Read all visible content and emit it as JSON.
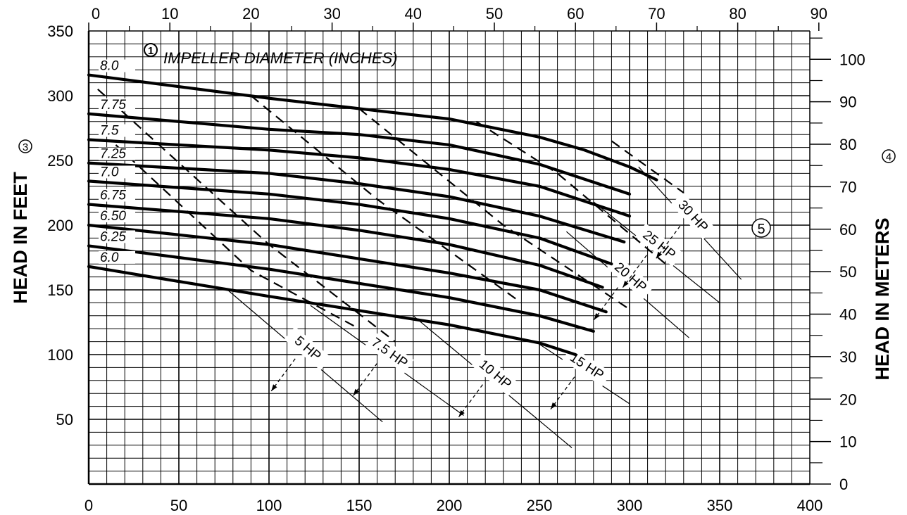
{
  "chart_data": {
    "type": "line",
    "title": "IMPELLER DIAMETER (INCHES)",
    "title_marker": "1",
    "ylabel_left": "HEAD IN FEET",
    "ylabel_left_marker": "3",
    "ylabel_right": "HEAD IN METERS",
    "ylabel_right_marker": "4",
    "hp_marker": "5",
    "x_bottom_ticks": [
      "0",
      "50",
      "100",
      "150",
      "200",
      "250",
      "300",
      "350",
      "400"
    ],
    "x_top_ticks": [
      "0",
      "10",
      "20",
      "30",
      "40",
      "50",
      "60",
      "70",
      "80",
      "90"
    ],
    "y_left_ticks": [
      "50",
      "100",
      "150",
      "200",
      "250",
      "300",
      "350"
    ],
    "y_right_ticks": [
      "0",
      "10",
      "20",
      "30",
      "40",
      "50",
      "60",
      "70",
      "80",
      "90",
      "100"
    ],
    "xlim": [
      0,
      400
    ],
    "ylim": [
      0,
      350
    ],
    "grid": true,
    "series": [
      {
        "name": "8.0",
        "points": [
          [
            0,
            316
          ],
          [
            100,
            298
          ],
          [
            150,
            290
          ],
          [
            200,
            282
          ],
          [
            250,
            268
          ],
          [
            275,
            258
          ],
          [
            300,
            245
          ],
          [
            315,
            235
          ]
        ]
      },
      {
        "name": "7.75",
        "points": [
          [
            0,
            286
          ],
          [
            100,
            274
          ],
          [
            150,
            270
          ],
          [
            200,
            262
          ],
          [
            250,
            247
          ],
          [
            300,
            224
          ]
        ]
      },
      {
        "name": "7.5",
        "points": [
          [
            0,
            266
          ],
          [
            100,
            258
          ],
          [
            150,
            252
          ],
          [
            200,
            243
          ],
          [
            250,
            230
          ],
          [
            300,
            207
          ]
        ]
      },
      {
        "name": "7.25",
        "points": [
          [
            0,
            248
          ],
          [
            100,
            240
          ],
          [
            150,
            232
          ],
          [
            200,
            222
          ],
          [
            250,
            207
          ],
          [
            297,
            187
          ]
        ]
      },
      {
        "name": "7.0",
        "points": [
          [
            0,
            234
          ],
          [
            100,
            224
          ],
          [
            150,
            216
          ],
          [
            200,
            205
          ],
          [
            250,
            190
          ],
          [
            290,
            170
          ]
        ]
      },
      {
        "name": "6.75",
        "points": [
          [
            0,
            216
          ],
          [
            100,
            205
          ],
          [
            150,
            196
          ],
          [
            200,
            185
          ],
          [
            250,
            169
          ],
          [
            285,
            152
          ]
        ]
      },
      {
        "name": "6.50",
        "points": [
          [
            0,
            200
          ],
          [
            100,
            185
          ],
          [
            150,
            174
          ],
          [
            200,
            163
          ],
          [
            250,
            150
          ],
          [
            287,
            133
          ]
        ]
      },
      {
        "name": "6.25",
        "points": [
          [
            0,
            184
          ],
          [
            100,
            166
          ],
          [
            150,
            155
          ],
          [
            200,
            144
          ],
          [
            250,
            130
          ],
          [
            280,
            118
          ]
        ]
      },
      {
        "name": "6.0",
        "points": [
          [
            0,
            168
          ],
          [
            100,
            145
          ],
          [
            150,
            134
          ],
          [
            200,
            123
          ],
          [
            250,
            109
          ],
          [
            270,
            100
          ]
        ]
      }
    ],
    "hp_lines": [
      {
        "name": "5 HP",
        "points": [
          [
            77,
            150
          ],
          [
            163,
            48
          ]
        ]
      },
      {
        "name": "7.5 HP",
        "points": [
          [
            123,
            138
          ],
          [
            208,
            53
          ]
        ]
      },
      {
        "name": "10 HP",
        "points": [
          [
            180,
            130
          ],
          [
            268,
            28
          ]
        ]
      },
      {
        "name": "15 HP",
        "points": [
          [
            250,
            108
          ],
          [
            300,
            62
          ]
        ]
      },
      {
        "name": "20 HP",
        "points": [
          [
            265,
            195
          ],
          [
            333,
            113
          ]
        ]
      },
      {
        "name": "25 HP",
        "points": [
          [
            280,
            218
          ],
          [
            350,
            140
          ]
        ]
      },
      {
        "name": "30 HP",
        "points": [
          [
            305,
            245
          ],
          [
            362,
            158
          ]
        ]
      }
    ]
  }
}
